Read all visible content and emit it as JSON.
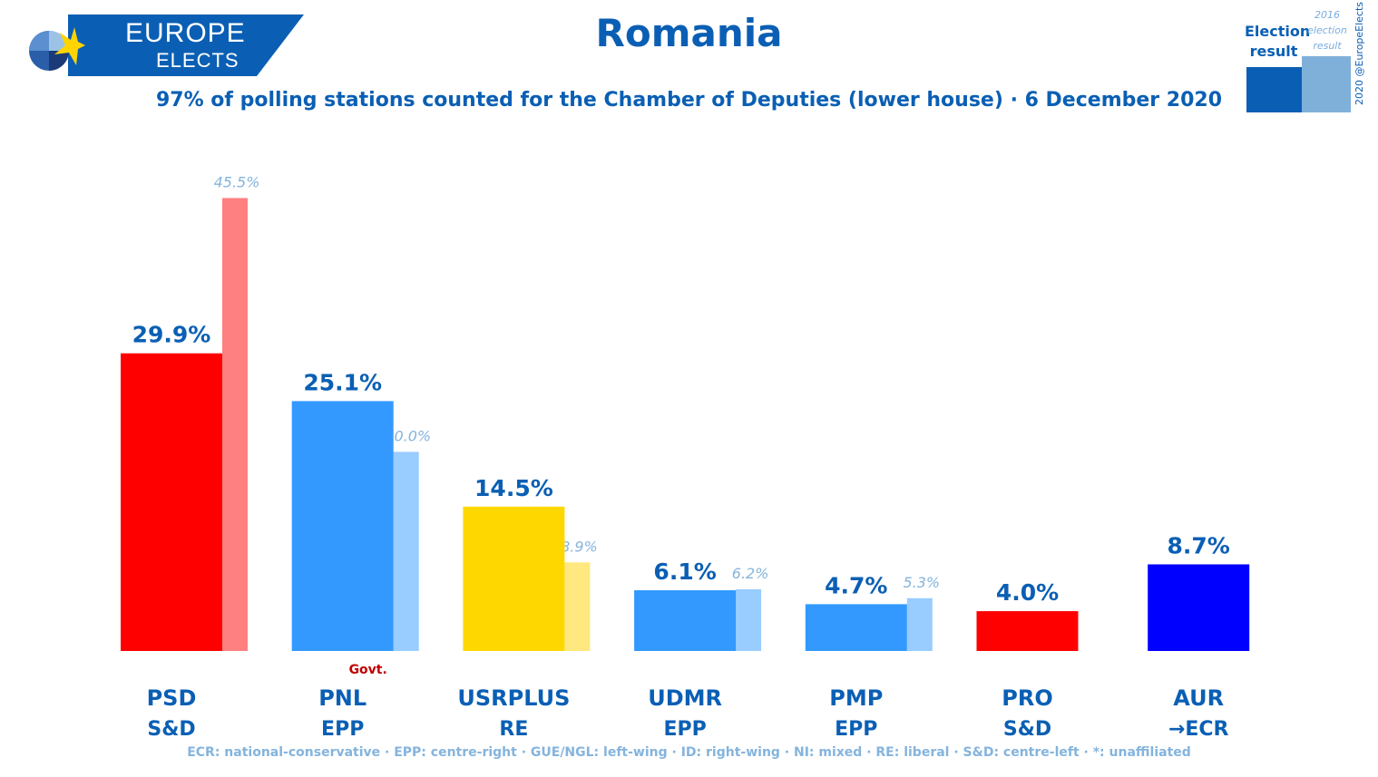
{
  "header": {
    "logo_line1": "EUROPE",
    "logo_line2": "ELECTS",
    "title": "Romania",
    "subtitle": "97% of polling stations counted for the Chamber of Deputies (lower house) · 6 December 2020",
    "legend_current": "Election result",
    "legend_previous": "2016 election result",
    "credit": "2020 @EuropeElects"
  },
  "footnote": "ECR: national-conservative · EPP: centre-right · GUE/NGL: left-wing · ID: right-wing · NI: mixed · RE: liberal · S&D: centre-left · *: unaffiliated",
  "colors": {
    "accent": "#0a5fb4",
    "faded_label": "#84b4dd",
    "govt": "#c00000"
  },
  "chart_data": {
    "type": "bar",
    "categories": [
      "PSD",
      "PNL",
      "USRPLUS",
      "UDMR",
      "PMP",
      "PRO",
      "AUR"
    ],
    "groups": [
      "S&D",
      "EPP",
      "RE",
      "EPP",
      "EPP",
      "S&D",
      "→ECR"
    ],
    "series": [
      {
        "values": [
          29.9,
          25.1,
          14.5,
          6.1,
          4.7,
          4.0,
          8.7
        ],
        "labels": [
          "29.9%",
          "25.1%",
          "14.5%",
          "6.1%",
          "4.7%",
          "4.0%",
          "8.7%"
        ],
        "colors": [
          "#ff0000",
          "#3399ff",
          "#ffd700",
          "#3399ff",
          "#3399ff",
          "#ff0000",
          "#0000ff"
        ]
      },
      {
        "values": [
          45.5,
          20.0,
          8.9,
          6.2,
          5.3,
          null,
          null
        ],
        "labels": [
          "45.5%",
          "20.0%",
          "8.9%",
          "6.2%",
          "5.3%",
          "",
          ""
        ],
        "colors": [
          "#ff8080",
          "#99ccff",
          "#ffe880",
          "#99ccff",
          "#99ccff",
          "",
          ""
        ]
      }
    ],
    "annotations": [
      {
        "category": "PNL",
        "text": "Govt."
      }
    ],
    "ylim": [
      0,
      50
    ],
    "grid": false
  }
}
